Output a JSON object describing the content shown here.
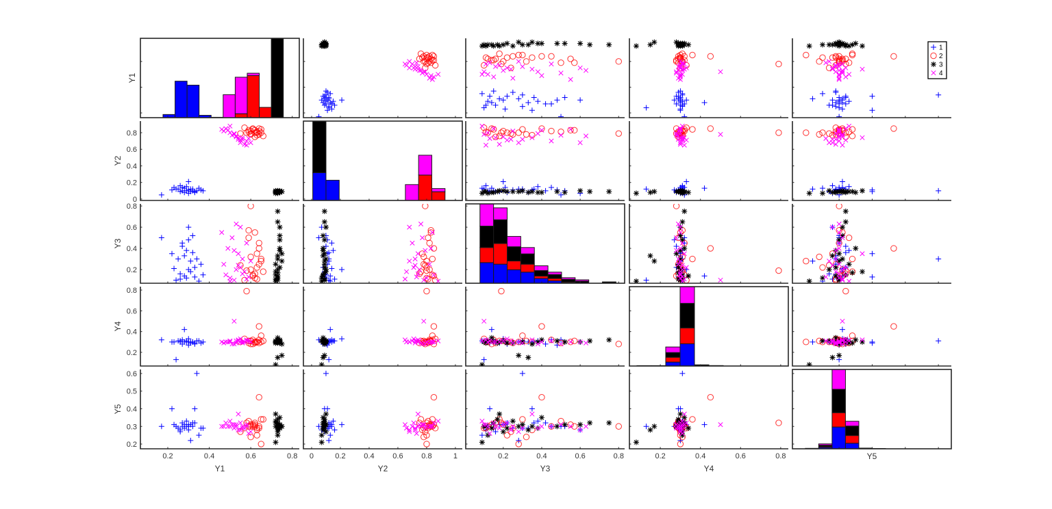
{
  "chart_data": {
    "type": "scatter",
    "subtype": "grouped scatter matrix with stacked histograms on diagonal",
    "variables": [
      "Y1",
      "Y2",
      "Y3",
      "Y4",
      "Y5"
    ],
    "limits": {
      "x": [
        [
          0.068,
          0.834
        ],
        [
          -0.057,
          1.048
        ],
        [
          0.005,
          0.831
        ],
        [
          0.046,
          0.838
        ],
        [
          0.159,
          0.639
        ]
      ],
      "y": [
        [
          0.163,
          0.78
        ],
        [
          -0.017,
          0.94
        ],
        [
          0.071,
          0.82
        ],
        [
          0.068,
          0.833
        ],
        [
          0.173,
          0.623
        ]
      ]
    },
    "ticks": {
      "x": [
        [
          0.2,
          0.4,
          0.6,
          0.8
        ],
        [
          0,
          0.2,
          0.4,
          0.6,
          0.8,
          1
        ],
        [
          0.2,
          0.4,
          0.6,
          0.8
        ],
        [
          0.2,
          0.4,
          0.6,
          0.8
        ],
        [
          0.3,
          0.4,
          0.5,
          0.6
        ]
      ],
      "y": [
        [
          0.2,
          0.4,
          0.6
        ],
        [
          0,
          0.2,
          0.4,
          0.6,
          0.8
        ],
        [
          0.2,
          0.4,
          0.6,
          0.8
        ],
        [
          0.2,
          0.4,
          0.6,
          0.8
        ],
        [
          0.2,
          0.3,
          0.4,
          0.5,
          0.6
        ]
      ]
    },
    "grid": false,
    "legend": {
      "placement": "top-right",
      "entries": [
        "1",
        "2",
        "3",
        "4"
      ]
    },
    "groups": [
      {
        "name": "1",
        "color": "#0000ff",
        "marker": "plus",
        "points": [
          [
            0.29,
            0.1,
            0.12,
            0.3,
            0.3
          ],
          [
            0.25,
            0.12,
            0.3,
            0.31,
            0.29
          ],
          [
            0.31,
            0.09,
            0.18,
            0.29,
            0.31
          ],
          [
            0.27,
            0.14,
            0.45,
            0.32,
            0.3
          ],
          [
            0.33,
            0.08,
            0.22,
            0.28,
            0.32
          ],
          [
            0.22,
            0.11,
            0.35,
            0.3,
            0.4
          ],
          [
            0.34,
            0.1,
            0.3,
            0.31,
            0.6
          ],
          [
            0.28,
            0.13,
            0.14,
            0.42,
            0.31
          ],
          [
            0.3,
            0.07,
            0.6,
            0.3,
            0.28
          ],
          [
            0.24,
            0.12,
            0.1,
            0.13,
            0.3
          ],
          [
            0.36,
            0.11,
            0.25,
            0.29,
            0.29
          ],
          [
            0.29,
            0.15,
            0.38,
            0.31,
            0.33
          ],
          [
            0.32,
            0.1,
            0.52,
            0.3,
            0.3
          ],
          [
            0.17,
            0.05,
            0.5,
            0.32,
            0.3
          ],
          [
            0.26,
            0.09,
            0.16,
            0.3,
            0.27
          ],
          [
            0.3,
            0.21,
            0.2,
            0.33,
            0.31
          ],
          [
            0.31,
            0.12,
            0.28,
            0.3,
            0.22
          ],
          [
            0.33,
            0.09,
            0.13,
            0.29,
            0.4
          ],
          [
            0.27,
            0.1,
            0.42,
            0.28,
            0.32
          ],
          [
            0.35,
            0.13,
            0.09,
            0.31,
            0.25
          ],
          [
            0.28,
            0.08,
            0.33,
            0.3,
            0.29
          ],
          [
            0.23,
            0.14,
            0.21,
            0.3,
            0.31
          ],
          [
            0.3,
            0.11,
            0.48,
            0.27,
            0.3
          ],
          [
            0.26,
            0.16,
            0.11,
            0.31,
            0.28
          ],
          [
            0.32,
            0.12,
            0.36,
            0.3,
            0.32
          ],
          [
            0.37,
            0.1,
            0.15,
            0.3,
            0.29
          ]
        ]
      },
      {
        "name": "2",
        "color": "#ff0000",
        "marker": "circle",
        "points": [
          [
            0.62,
            0.8,
            0.12,
            0.3,
            0.3
          ],
          [
            0.6,
            0.82,
            0.2,
            0.31,
            0.31
          ],
          [
            0.64,
            0.78,
            0.25,
            0.29,
            0.29
          ],
          [
            0.58,
            0.8,
            0.19,
            0.79,
            0.32
          ],
          [
            0.64,
            0.85,
            0.4,
            0.45,
            0.465
          ],
          [
            0.6,
            0.79,
            0.8,
            0.28,
            0.3
          ],
          [
            0.65,
            0.8,
            0.28,
            0.3,
            0.2
          ],
          [
            0.61,
            0.84,
            0.15,
            0.32,
            0.3
          ],
          [
            0.63,
            0.77,
            0.35,
            0.3,
            0.28
          ],
          [
            0.59,
            0.81,
            0.5,
            0.29,
            0.33
          ],
          [
            0.66,
            0.76,
            0.18,
            0.31,
            0.34
          ],
          [
            0.62,
            0.83,
            0.55,
            0.3,
            0.31
          ],
          [
            0.57,
            0.86,
            0.1,
            0.33,
            0.29
          ],
          [
            0.63,
            0.8,
            0.22,
            0.3,
            0.25
          ],
          [
            0.6,
            0.78,
            0.32,
            0.31,
            0.24
          ],
          [
            0.61,
            0.85,
            0.14,
            0.28,
            0.31
          ],
          [
            0.64,
            0.82,
            0.45,
            0.32,
            0.3
          ],
          [
            0.55,
            0.79,
            0.24,
            0.3,
            0.27
          ],
          [
            0.62,
            0.75,
            0.16,
            0.29,
            0.32
          ],
          [
            0.59,
            0.83,
            0.57,
            0.31,
            0.3
          ],
          [
            0.63,
            0.81,
            0.11,
            0.3,
            0.29
          ],
          [
            0.65,
            0.84,
            0.3,
            0.36,
            0.34
          ]
        ]
      },
      {
        "name": "3",
        "color": "#000000",
        "marker": "asterisk",
        "points": [
          [
            0.73,
            0.09,
            0.1,
            0.3,
            0.3
          ],
          [
            0.72,
            0.08,
            0.15,
            0.31,
            0.32
          ],
          [
            0.74,
            0.09,
            0.22,
            0.29,
            0.29
          ],
          [
            0.73,
            0.1,
            0.3,
            0.3,
            0.31
          ],
          [
            0.72,
            0.07,
            0.09,
            0.08,
            0.21
          ],
          [
            0.74,
            0.08,
            0.4,
            0.32,
            0.35
          ],
          [
            0.73,
            0.09,
            0.75,
            0.32,
            0.32
          ],
          [
            0.75,
            0.09,
            0.28,
            0.17,
            0.3
          ],
          [
            0.73,
            0.08,
            0.33,
            0.15,
            0.28
          ],
          [
            0.72,
            0.1,
            0.18,
            0.3,
            0.37
          ],
          [
            0.74,
            0.09,
            0.48,
            0.31,
            0.3
          ],
          [
            0.73,
            0.07,
            0.12,
            0.31,
            0.25
          ],
          [
            0.74,
            0.1,
            0.6,
            0.3,
            0.31
          ],
          [
            0.72,
            0.09,
            0.25,
            0.29,
            0.33
          ],
          [
            0.73,
            0.08,
            0.14,
            0.34,
            0.29
          ],
          [
            0.75,
            0.09,
            0.35,
            0.28,
            0.3
          ],
          [
            0.73,
            0.1,
            0.2,
            0.31,
            0.27
          ],
          [
            0.74,
            0.08,
            0.52,
            0.3,
            0.31
          ],
          [
            0.72,
            0.09,
            0.11,
            0.29,
            0.3
          ],
          [
            0.73,
            0.09,
            0.65,
            0.31,
            0.32
          ],
          [
            0.74,
            0.08,
            0.38,
            0.3,
            0.29
          ],
          [
            0.73,
            0.09,
            0.17,
            0.29,
            0.34
          ]
        ]
      },
      {
        "name": "4",
        "color": "#ff00ff",
        "marker": "cross",
        "points": [
          [
            0.5,
            0.8,
            0.12,
            0.3,
            0.3
          ],
          [
            0.53,
            0.75,
            0.2,
            0.31,
            0.31
          ],
          [
            0.56,
            0.72,
            0.3,
            0.29,
            0.29
          ],
          [
            0.48,
            0.85,
            0.15,
            0.3,
            0.32
          ],
          [
            0.58,
            0.7,
            0.45,
            0.31,
            0.3
          ],
          [
            0.52,
            0.78,
            0.1,
            0.5,
            0.31
          ],
          [
            0.55,
            0.68,
            0.6,
            0.3,
            0.28
          ],
          [
            0.47,
            0.82,
            0.25,
            0.29,
            0.3
          ],
          [
            0.54,
            0.74,
            0.35,
            0.32,
            0.37
          ],
          [
            0.57,
            0.66,
            0.18,
            0.3,
            0.29
          ],
          [
            0.51,
            0.77,
            0.5,
            0.28,
            0.31
          ],
          [
            0.59,
            0.73,
            0.13,
            0.31,
            0.26
          ],
          [
            0.49,
            0.83,
            0.4,
            0.3,
            0.3
          ],
          [
            0.55,
            0.71,
            0.22,
            0.33,
            0.32
          ],
          [
            0.53,
            0.76,
            0.63,
            0.29,
            0.3
          ],
          [
            0.6,
            0.68,
            0.28,
            0.3,
            0.27
          ],
          [
            0.5,
            0.88,
            0.09,
            0.31,
            0.33
          ],
          [
            0.56,
            0.74,
            0.16,
            0.3,
            0.3
          ],
          [
            0.52,
            0.79,
            0.38,
            0.28,
            0.29
          ],
          [
            0.58,
            0.65,
            0.11,
            0.32,
            0.31
          ],
          [
            0.46,
            0.84,
            0.55,
            0.3,
            0.3
          ],
          [
            0.54,
            0.72,
            0.24,
            0.31,
            0.28
          ]
        ]
      }
    ],
    "histograms": [
      {
        "variable": "Y1",
        "bin_start": 0.177,
        "bin_width": 0.058,
        "ylim": [
          0,
          100
        ],
        "counts": [
          [
            4,
            0,
            0,
            0
          ],
          [
            46,
            0,
            0,
            0
          ],
          [
            41,
            0,
            0,
            0
          ],
          [
            3,
            0,
            0,
            0
          ],
          [
            0.5,
            0,
            0,
            0
          ],
          [
            0,
            0,
            0,
            29
          ],
          [
            0,
            5,
            0,
            46
          ],
          [
            0,
            53,
            0,
            3
          ],
          [
            0,
            13,
            0,
            0
          ],
          [
            0,
            0,
            110,
            0
          ]
        ]
      },
      {
        "variable": "Y2",
        "bin_start": 0.008,
        "bin_width": 0.092,
        "ylim": [
          0,
          100
        ],
        "counts": [
          [
            35,
            0,
            66,
            0
          ],
          [
            25.5,
            0,
            0,
            0
          ],
          [
            0,
            0,
            0,
            0
          ],
          [
            0,
            0,
            0,
            0
          ],
          [
            0,
            0,
            0,
            0
          ],
          [
            0,
            0,
            0,
            0
          ],
          [
            0,
            0,
            0,
            0
          ],
          [
            0,
            0,
            0,
            20
          ],
          [
            0,
            32,
            0,
            25
          ],
          [
            0,
            11,
            0,
            4
          ]
        ]
      },
      {
        "variable": "Y3",
        "bin_start": 0.079,
        "bin_width": 0.0707,
        "ylim": [
          0,
          100
        ],
        "counts": [
          [
            26,
            19,
            27,
            29
          ],
          [
            24,
            26,
            30,
            15
          ],
          [
            17,
            11,
            18,
            13
          ],
          [
            14,
            10,
            13,
            8
          ],
          [
            6,
            3,
            7,
            6
          ],
          [
            3,
            3,
            5,
            3
          ],
          [
            0.5,
            1,
            3.5,
            2
          ],
          [
            0,
            0.3,
            2.3,
            1.7
          ],
          [
            0,
            0,
            0,
            0
          ],
          [
            0,
            0,
            1.7,
            0
          ]
        ]
      },
      {
        "variable": "Y4",
        "bin_start": 0.0835,
        "bin_width": 0.0717,
        "ylim": [
          0,
          100
        ],
        "counts": [
          [
            0,
            0,
            0.5,
            0
          ],
          [
            0,
            0,
            0.5,
            0
          ],
          [
            5,
            6,
            6,
            7
          ],
          [
            28,
            20,
            31,
            21
          ],
          [
            0,
            0,
            1.5,
            0
          ],
          [
            0,
            0,
            0.6,
            0
          ],
          [
            0,
            0,
            0,
            0
          ],
          [
            0,
            0,
            0,
            0
          ],
          [
            0,
            0,
            0,
            0
          ],
          [
            0,
            0,
            0,
            0
          ]
        ]
      },
      {
        "variable": "Y5",
        "bin_start": 0.198,
        "bin_width": 0.0404,
        "ylim": [
          0,
          100
        ],
        "counts": [
          [
            0,
            0,
            0.6,
            0
          ],
          [
            1.7,
            1.1,
            1.7,
            1.7
          ],
          [
            27.5,
            18,
            29.5,
            25
          ],
          [
            7,
            9.7,
            12,
            6
          ],
          [
            0,
            0,
            0.9,
            0
          ],
          [
            0,
            0,
            0.4,
            0
          ],
          [
            0,
            0,
            0,
            0
          ],
          [
            0,
            0,
            0,
            0
          ],
          [
            0,
            0,
            0,
            0
          ],
          [
            0,
            0,
            0,
            0
          ]
        ]
      }
    ]
  }
}
